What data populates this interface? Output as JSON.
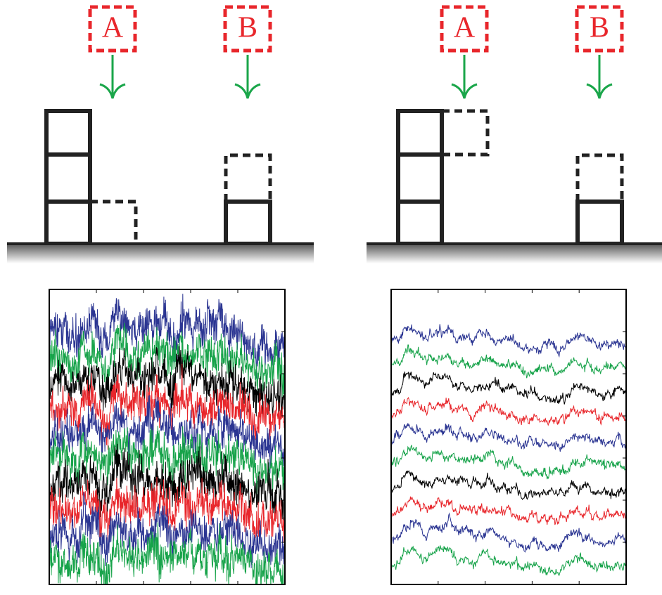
{
  "panels": [
    {
      "labels": [
        "A",
        "B"
      ]
    },
    {
      "labels": [
        "A",
        "B"
      ]
    }
  ]
}
